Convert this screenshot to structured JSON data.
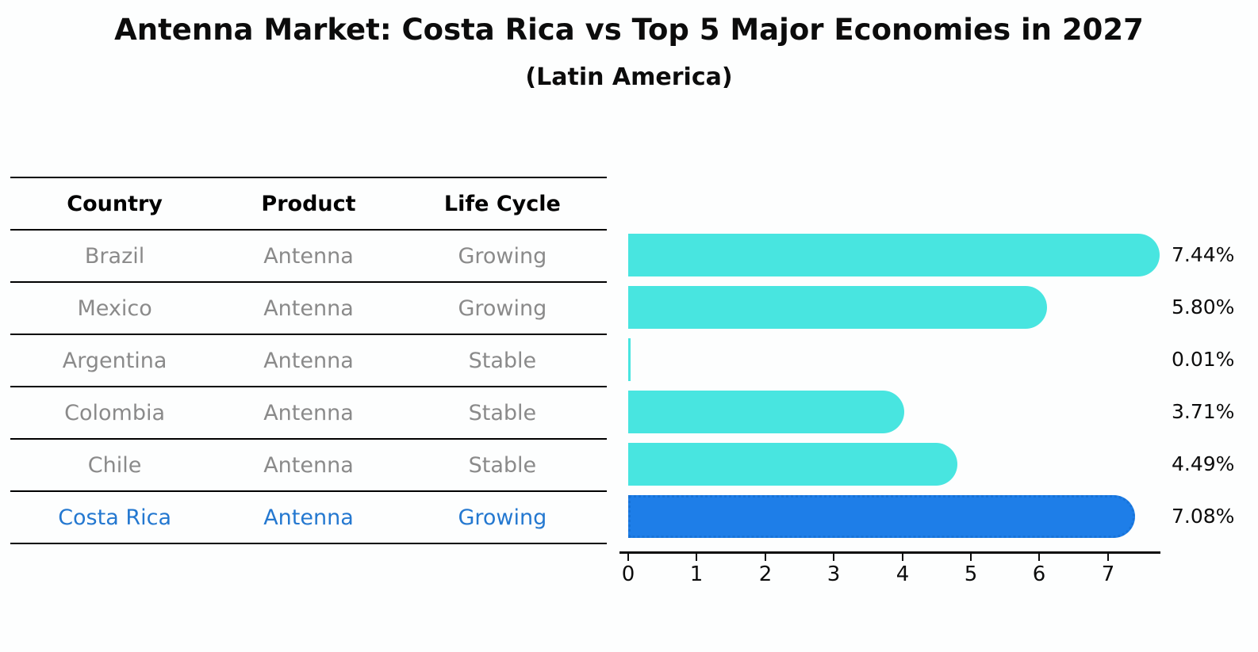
{
  "title": "Antenna Market: Costa Rica vs Top 5 Major Economies in 2027",
  "subtitle": "(Latin America)",
  "table": {
    "headers": [
      "Country",
      "Product",
      "Life Cycle"
    ],
    "rows": [
      {
        "country": "Brazil",
        "product": "Antenna",
        "life_cycle": "Growing",
        "highlight": false
      },
      {
        "country": "Mexico",
        "product": "Antenna",
        "life_cycle": "Growing",
        "highlight": false
      },
      {
        "country": "Argentina",
        "product": "Antenna",
        "life_cycle": "Stable",
        "highlight": false
      },
      {
        "country": "Colombia",
        "product": "Antenna",
        "life_cycle": "Stable",
        "highlight": false
      },
      {
        "country": "Chile",
        "product": "Antenna",
        "life_cycle": "Stable",
        "highlight": false
      },
      {
        "country": "Costa Rica",
        "product": "Antenna",
        "life_cycle": "Growing",
        "highlight": true
      }
    ]
  },
  "chart_data": {
    "type": "bar",
    "orientation": "horizontal",
    "title": "Antenna Market: Costa Rica vs Top 5 Major Economies in 2027",
    "subtitle": "(Latin America)",
    "categories": [
      "Brazil",
      "Mexico",
      "Argentina",
      "Colombia",
      "Chile",
      "Costa Rica"
    ],
    "values": [
      7.44,
      5.8,
      0.01,
      3.71,
      4.49,
      7.08
    ],
    "value_labels": [
      "7.44%",
      "5.80%",
      "0.01%",
      "3.71%",
      "4.49%",
      "7.08%"
    ],
    "highlight_index": 5,
    "xlabel": "",
    "ylabel": "",
    "xlim": [
      0,
      7.8
    ],
    "x_ticks": [
      "0",
      "1",
      "2",
      "3",
      "4",
      "5",
      "6",
      "7"
    ],
    "grid": false,
    "legend": "none"
  },
  "colors": {
    "bar": "#48e5e0",
    "highlight_bar": "#1e7ee8",
    "highlight_bar_border": "#1773d8",
    "highlight_text": "#2478d0",
    "cell_text": "#8a8a8a",
    "header_text": "#000000"
  }
}
